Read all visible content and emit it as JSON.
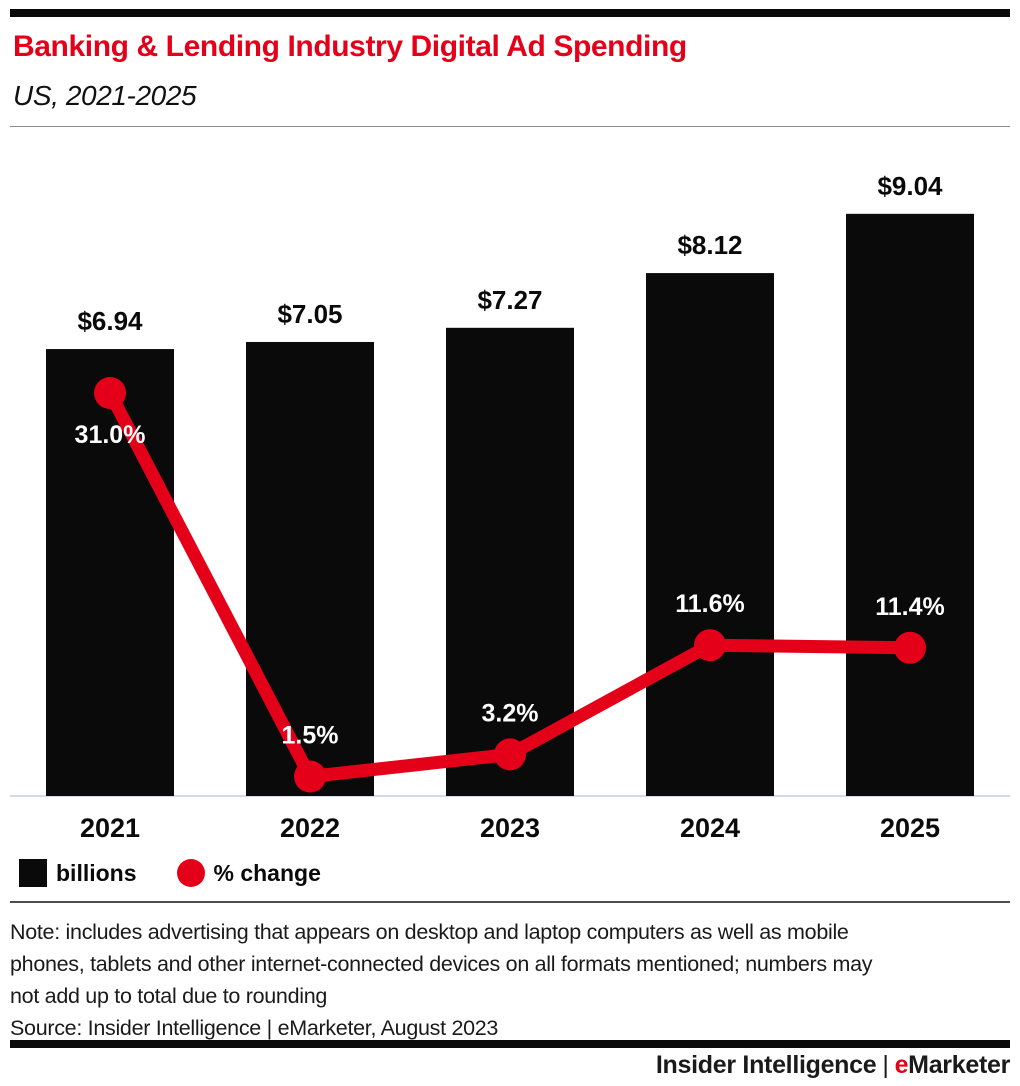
{
  "accent_red": "#e50019",
  "header": {
    "title": "Banking & Lending Industry Digital Ad Spending",
    "subtitle": "US, 2021-2025"
  },
  "chart_data": {
    "type": "bar",
    "subtype": "bar-line-combo",
    "title": "Banking & Lending Industry Digital Ad Spending",
    "subtitle": "US, 2021-2025",
    "categories": [
      "2021",
      "2022",
      "2023",
      "2024",
      "2025"
    ],
    "series": [
      {
        "name": "billions",
        "type": "bar",
        "values": [
          6.94,
          7.05,
          7.27,
          8.12,
          9.04
        ],
        "labels": [
          "$6.94",
          "$7.05",
          "$7.27",
          "$8.12",
          "$9.04"
        ],
        "color": "#0a0a0a"
      },
      {
        "name": "% change",
        "type": "line",
        "values": [
          31.0,
          1.5,
          3.2,
          11.6,
          11.4
        ],
        "labels": [
          "31.0%",
          "1.5%",
          "3.2%",
          "11.6%",
          "11.4%"
        ],
        "color": "#e50019"
      }
    ],
    "xlabel": "",
    "ylabel": "",
    "ylim_bar": [
      0,
      10.2
    ],
    "ylim_pct": [
      0,
      50.5
    ],
    "grid": false,
    "axis_line_color": "#d3dbe9",
    "legend_position": "bottom-left"
  },
  "legend": {
    "items": [
      {
        "label": "billions",
        "swatch": "square",
        "color": "#0a0a0a"
      },
      {
        "label": "% change",
        "swatch": "circle",
        "color": "#e50019"
      }
    ]
  },
  "note_lines": [
    "Note: includes advertising that appears on desktop and laptop computers as well as mobile",
    "phones, tablets and other internet-connected devices on all formats mentioned; numbers may",
    "not add up to total due to rounding"
  ],
  "source": "Source: Insider Intelligence | eMarketer, August 2023",
  "footer": {
    "brand_left": "Insider Intelligence",
    "separator": "|",
    "brand_e": "e",
    "brand_rest": "Marketer"
  }
}
